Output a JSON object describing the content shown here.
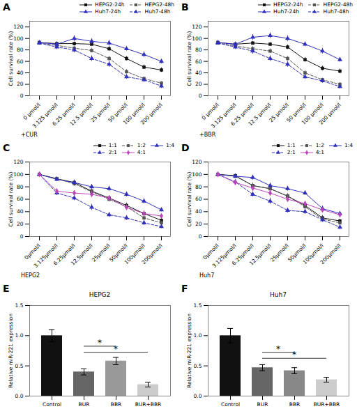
{
  "chart_data": [
    {
      "type": "line",
      "title": "A",
      "xlabel": "+CUR",
      "ylabel": "Cell survival rate (%)",
      "categories": [
        "0 μmol/l",
        "3.125 μmol/l",
        "6.25 μmol/l",
        "12.5 μmol/l",
        "25 μmol/l",
        "50 μmol/l",
        "100 μmol/l",
        "200 μmol/l"
      ],
      "series": [
        {
          "name": "HEPG2-24h",
          "color": "#111111",
          "marker": "square",
          "line_style": "solid",
          "values": [
            93,
            91,
            91,
            90,
            82,
            65,
            50,
            45
          ],
          "err": [
            3,
            3,
            3,
            3,
            4,
            4,
            4,
            4
          ]
        },
        {
          "name": "HEPG2-48h",
          "color": "#555555",
          "marker": "square",
          "line_style": "dashed",
          "values": [
            92,
            88,
            83,
            79,
            65,
            42,
            30,
            22
          ],
          "err": [
            3,
            3,
            4,
            4,
            4,
            4,
            3,
            3
          ]
        },
        {
          "name": "Huh7-24h",
          "color": "#3030bb",
          "marker": "triangle",
          "line_style": "solid",
          "values": [
            93,
            90,
            100,
            95,
            92,
            82,
            72,
            60
          ],
          "err": [
            3,
            4,
            5,
            5,
            5,
            4,
            5,
            4
          ]
        },
        {
          "name": "Huh7-48h",
          "color": "#3030bb",
          "marker": "triangle",
          "line_style": "dashed",
          "values": [
            92,
            85,
            80,
            65,
            55,
            33,
            28,
            17
          ],
          "err": [
            3,
            4,
            5,
            5,
            5,
            4,
            4,
            4
          ]
        }
      ],
      "ylim": [
        0,
        130
      ],
      "yticks": [
        0,
        20,
        40,
        60,
        80,
        100,
        120
      ],
      "grid": false,
      "legend": "upper right"
    },
    {
      "type": "line",
      "title": "B",
      "xlabel": "+BBR",
      "ylabel": "Cell survival rate (%)",
      "categories": [
        "0 μmol/l",
        "3.125 μmol/l",
        "6.25 μmol/l",
        "12.5 μmol/l",
        "25 μmol/l",
        "50 μmol/l",
        "100 μmol/l",
        "200 μmol/l"
      ],
      "series": [
        {
          "name": "HEPG2-24h",
          "color": "#111111",
          "marker": "square",
          "line_style": "solid",
          "values": [
            93,
            90,
            92,
            90,
            85,
            63,
            48,
            43
          ],
          "err": [
            3,
            3,
            3,
            3,
            4,
            4,
            4,
            4
          ]
        },
        {
          "name": "HEPG2-48h",
          "color": "#555555",
          "marker": "square",
          "line_style": "dashed",
          "values": [
            92,
            87,
            82,
            78,
            65,
            40,
            28,
            20
          ],
          "err": [
            3,
            3,
            4,
            4,
            4,
            4,
            3,
            3
          ]
        },
        {
          "name": "Huh7-24h",
          "color": "#3030bb",
          "marker": "triangle",
          "line_style": "solid",
          "values": [
            93,
            90,
            102,
            105,
            100,
            90,
            78,
            63
          ],
          "err": [
            3,
            4,
            5,
            5,
            5,
            4,
            5,
            4
          ]
        },
        {
          "name": "Huh7-48h",
          "color": "#3030bb",
          "marker": "triangle",
          "line_style": "dashed",
          "values": [
            92,
            85,
            78,
            65,
            55,
            33,
            26,
            16
          ],
          "err": [
            3,
            4,
            5,
            5,
            5,
            4,
            4,
            4
          ]
        }
      ],
      "ylim": [
        0,
        130
      ],
      "yticks": [
        0,
        20,
        40,
        60,
        80,
        100,
        120
      ],
      "grid": false,
      "legend": "upper right"
    },
    {
      "type": "line",
      "title": "C",
      "xlabel": "HEPG2",
      "ylabel": "Cell survival rate (%)",
      "categories": [
        "0μmol/l",
        "3.125μmol/l",
        "6.25μmol/l",
        "12.5μmol/l",
        "25μmol/l",
        "50μmol/l",
        "100μmol/l",
        "200μmol/l"
      ],
      "series": [
        {
          "name": "1:1",
          "color": "#111111",
          "marker": "square",
          "line_style": "solid",
          "values": [
            100,
            93,
            87,
            73,
            62,
            50,
            37,
            26
          ],
          "err": [
            2,
            3,
            4,
            4,
            4,
            4,
            4,
            3
          ]
        },
        {
          "name": "1:2",
          "color": "#555555",
          "marker": "square",
          "line_style": "dashed",
          "values": [
            100,
            93,
            85,
            72,
            60,
            48,
            30,
            22
          ],
          "err": [
            2,
            3,
            4,
            4,
            4,
            4,
            4,
            3
          ]
        },
        {
          "name": "1:4",
          "color": "#3030bb",
          "marker": "triangle",
          "line_style": "solid",
          "values": [
            100,
            92,
            87,
            80,
            77,
            68,
            57,
            43
          ],
          "err": [
            2,
            3,
            4,
            4,
            4,
            4,
            4,
            3
          ]
        },
        {
          "name": "2:1",
          "color": "#3030bb",
          "marker": "triangle",
          "line_style": "dashed",
          "values": [
            100,
            70,
            62,
            47,
            35,
            30,
            22,
            16
          ],
          "err": [
            2,
            4,
            4,
            5,
            4,
            4,
            4,
            3
          ]
        },
        {
          "name": "4:1",
          "color": "#bb44bb",
          "marker": "diamond",
          "line_style": "solid",
          "values": [
            100,
            73,
            70,
            68,
            62,
            47,
            37,
            33
          ],
          "err": [
            2,
            4,
            4,
            5,
            4,
            4,
            4,
            3
          ]
        }
      ],
      "ylim": [
        0,
        120
      ],
      "yticks": [
        0,
        20,
        40,
        60,
        80,
        100,
        120
      ],
      "grid": false,
      "legend": "upper right"
    },
    {
      "type": "line",
      "title": "D",
      "xlabel": "Huh7",
      "ylabel": "Cell survival rate (%)",
      "categories": [
        "0μmol/l",
        "3.125μmol/l",
        "6.25μmol/l",
        "12.5μmol/l",
        "25μmol/l",
        "50μmol/l",
        "100μmol/l",
        "200μmol/l"
      ],
      "series": [
        {
          "name": "1:1",
          "color": "#111111",
          "marker": "square",
          "line_style": "solid",
          "values": [
            100,
            98,
            82,
            77,
            65,
            50,
            30,
            25
          ],
          "err": [
            2,
            3,
            4,
            4,
            4,
            4,
            4,
            3
          ]
        },
        {
          "name": "1:2",
          "color": "#555555",
          "marker": "square",
          "line_style": "dashed",
          "values": [
            100,
            97,
            82,
            77,
            65,
            48,
            28,
            22
          ],
          "err": [
            2,
            3,
            4,
            4,
            4,
            4,
            4,
            3
          ]
        },
        {
          "name": "1:4",
          "color": "#3030bb",
          "marker": "triangle",
          "line_style": "solid",
          "values": [
            100,
            97,
            95,
            82,
            77,
            70,
            45,
            37
          ],
          "err": [
            2,
            3,
            4,
            4,
            4,
            4,
            4,
            3
          ]
        },
        {
          "name": "2:1",
          "color": "#3030bb",
          "marker": "triangle",
          "line_style": "dashed",
          "values": [
            100,
            88,
            68,
            57,
            42,
            40,
            27,
            15
          ],
          "err": [
            2,
            4,
            4,
            5,
            4,
            4,
            4,
            3
          ]
        },
        {
          "name": "4:1",
          "color": "#bb44bb",
          "marker": "diamond",
          "line_style": "solid",
          "values": [
            100,
            87,
            78,
            70,
            60,
            53,
            43,
            35
          ],
          "err": [
            2,
            4,
            4,
            5,
            4,
            4,
            4,
            3
          ]
        }
      ],
      "ylim": [
        0,
        120
      ],
      "yticks": [
        0,
        20,
        40,
        60,
        80,
        100,
        120
      ],
      "grid": false,
      "legend": "upper right"
    },
    {
      "type": "bar",
      "title": "E",
      "subtitle": "HEPG2",
      "ylabel": "Relative miR-221 expression",
      "categories": [
        "Control",
        "BUR",
        "BBR",
        "BUR+BBR"
      ],
      "values": [
        1.0,
        0.4,
        0.58,
        0.19
      ],
      "err": [
        0.1,
        0.05,
        0.06,
        0.04
      ],
      "colors": [
        "#111111",
        "#666666",
        "#999999",
        "#cccccc"
      ],
      "ylim": [
        0,
        1.5
      ],
      "yticks": [
        {
          "value": 0,
          "label": "0.0"
        },
        0.5,
        {
          "value": 1,
          "label": "1.0"
        },
        1.5
      ],
      "grid": false,
      "annotations": [
        {
          "text": "*",
          "x1": "BUR",
          "x2": "BBR",
          "y": 0.82
        },
        {
          "text": "*",
          "x1": "BUR",
          "x2": "BUR+BBR",
          "y": 0.72
        }
      ]
    },
    {
      "type": "bar",
      "title": "F",
      "subtitle": "Huh7",
      "ylabel": "Relative miR-221 expression",
      "categories": [
        "Control",
        "BUR",
        "BBR",
        "BUR+BBR"
      ],
      "values": [
        1.0,
        0.47,
        0.42,
        0.27
      ],
      "err": [
        0.12,
        0.05,
        0.05,
        0.04
      ],
      "colors": [
        "#111111",
        "#666666",
        "#888888",
        "#cccccc"
      ],
      "ylim": [
        0,
        1.5
      ],
      "yticks": [
        {
          "value": 0,
          "label": "0.0"
        },
        0.5,
        {
          "value": 1,
          "label": "1.0"
        },
        1.5
      ],
      "grid": false,
      "annotations": [
        {
          "text": "*",
          "x1": "BUR",
          "x2": "BBR",
          "y": 0.72
        },
        {
          "text": "*",
          "x1": "BUR",
          "x2": "BUR+BBR",
          "y": 0.62
        }
      ]
    }
  ]
}
